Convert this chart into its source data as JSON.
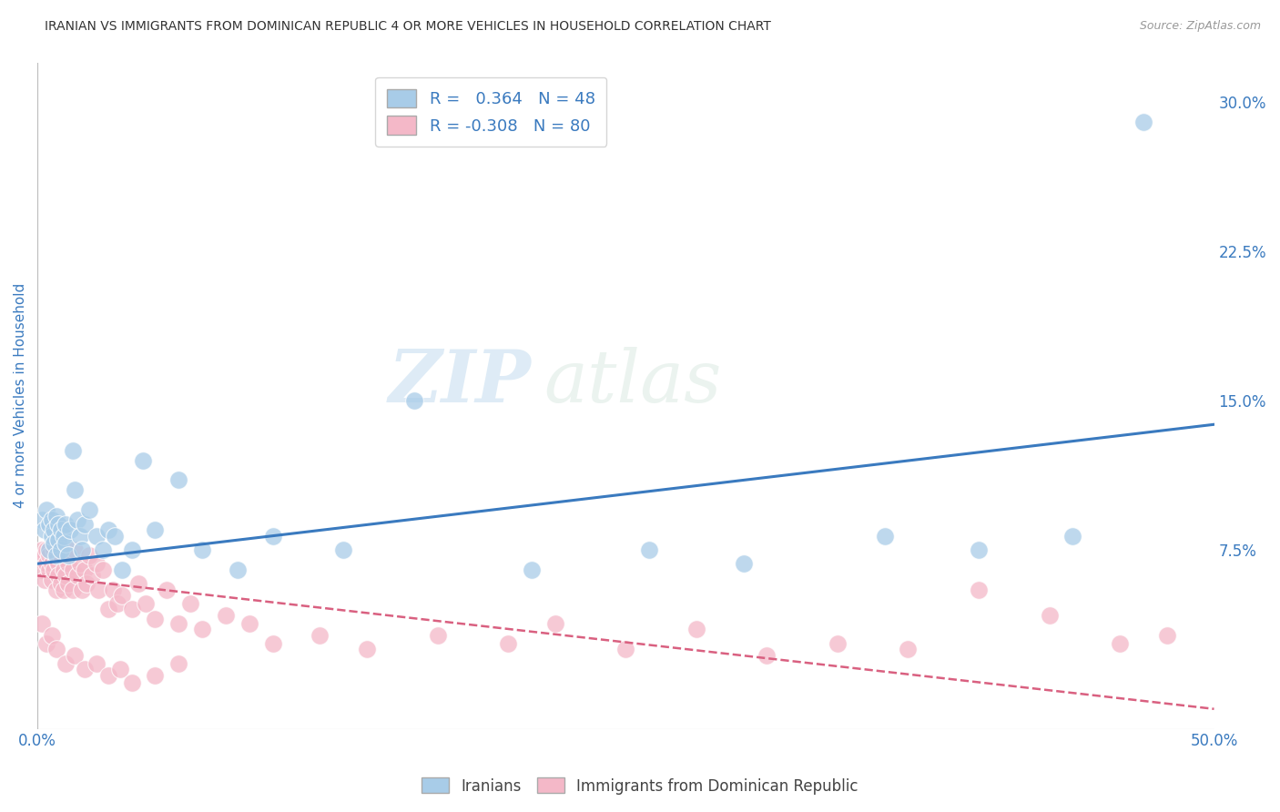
{
  "title": "IRANIAN VS IMMIGRANTS FROM DOMINICAN REPUBLIC 4 OR MORE VEHICLES IN HOUSEHOLD CORRELATION CHART",
  "source": "Source: ZipAtlas.com",
  "ylabel": "4 or more Vehicles in Household",
  "x_min": 0.0,
  "x_max": 0.5,
  "y_min": -0.015,
  "y_max": 0.32,
  "x_ticks": [
    0.0,
    0.5
  ],
  "x_tick_labels": [
    "0.0%",
    "50.0%"
  ],
  "y_ticks": [
    0.075,
    0.15,
    0.225,
    0.3
  ],
  "y_tick_labels": [
    "7.5%",
    "15.0%",
    "22.5%",
    "30.0%"
  ],
  "iranian_R": 0.364,
  "iranian_N": 48,
  "dominican_R": -0.308,
  "dominican_N": 80,
  "iranian_color": "#a8cce8",
  "dominican_color": "#f4b8c8",
  "iranian_line_color": "#3a7abf",
  "dominican_line_color": "#d96080",
  "legend_label_iranian": "Iranians",
  "legend_label_dominican": "Immigrants from Dominican Republic",
  "watermark_zip": "ZIP",
  "watermark_atlas": "atlas",
  "background_color": "#ffffff",
  "grid_color": "#cccccc",
  "title_color": "#333333",
  "axis_label_color": "#3a7abf",
  "tick_color": "#3a7abf",
  "iranian_scatter_x": [
    0.002,
    0.003,
    0.004,
    0.005,
    0.005,
    0.006,
    0.006,
    0.007,
    0.007,
    0.008,
    0.008,
    0.009,
    0.009,
    0.01,
    0.01,
    0.011,
    0.012,
    0.012,
    0.013,
    0.014,
    0.015,
    0.016,
    0.017,
    0.018,
    0.019,
    0.02,
    0.022,
    0.025,
    0.028,
    0.03,
    0.033,
    0.036,
    0.04,
    0.045,
    0.05,
    0.06,
    0.07,
    0.085,
    0.1,
    0.13,
    0.16,
    0.21,
    0.26,
    0.3,
    0.36,
    0.4,
    0.44,
    0.47
  ],
  "iranian_scatter_y": [
    0.09,
    0.085,
    0.095,
    0.088,
    0.075,
    0.082,
    0.09,
    0.085,
    0.078,
    0.092,
    0.072,
    0.088,
    0.08,
    0.085,
    0.075,
    0.082,
    0.078,
    0.088,
    0.072,
    0.085,
    0.125,
    0.105,
    0.09,
    0.082,
    0.075,
    0.088,
    0.095,
    0.082,
    0.075,
    0.085,
    0.082,
    0.065,
    0.075,
    0.12,
    0.085,
    0.11,
    0.075,
    0.065,
    0.082,
    0.075,
    0.15,
    0.065,
    0.075,
    0.068,
    0.082,
    0.075,
    0.082,
    0.29
  ],
  "dominican_scatter_x": [
    0.001,
    0.002,
    0.002,
    0.003,
    0.003,
    0.004,
    0.004,
    0.005,
    0.005,
    0.006,
    0.006,
    0.007,
    0.007,
    0.008,
    0.008,
    0.009,
    0.009,
    0.01,
    0.01,
    0.011,
    0.011,
    0.012,
    0.013,
    0.013,
    0.014,
    0.015,
    0.015,
    0.016,
    0.017,
    0.018,
    0.019,
    0.02,
    0.021,
    0.022,
    0.023,
    0.025,
    0.026,
    0.028,
    0.03,
    0.032,
    0.034,
    0.036,
    0.04,
    0.043,
    0.046,
    0.05,
    0.055,
    0.06,
    0.065,
    0.07,
    0.08,
    0.09,
    0.1,
    0.12,
    0.14,
    0.17,
    0.2,
    0.22,
    0.25,
    0.28,
    0.31,
    0.34,
    0.37,
    0.4,
    0.43,
    0.46,
    0.48,
    0.002,
    0.004,
    0.006,
    0.008,
    0.012,
    0.016,
    0.02,
    0.025,
    0.03,
    0.035,
    0.04,
    0.05,
    0.06
  ],
  "dominican_scatter_y": [
    0.07,
    0.075,
    0.065,
    0.072,
    0.06,
    0.068,
    0.075,
    0.065,
    0.072,
    0.068,
    0.06,
    0.075,
    0.065,
    0.07,
    0.055,
    0.068,
    0.062,
    0.058,
    0.072,
    0.065,
    0.055,
    0.062,
    0.068,
    0.058,
    0.072,
    0.065,
    0.055,
    0.075,
    0.062,
    0.068,
    0.055,
    0.065,
    0.058,
    0.072,
    0.062,
    0.068,
    0.055,
    0.065,
    0.045,
    0.055,
    0.048,
    0.052,
    0.045,
    0.058,
    0.048,
    0.04,
    0.055,
    0.038,
    0.048,
    0.035,
    0.042,
    0.038,
    0.028,
    0.032,
    0.025,
    0.032,
    0.028,
    0.038,
    0.025,
    0.035,
    0.022,
    0.028,
    0.025,
    0.055,
    0.042,
    0.028,
    0.032,
    0.038,
    0.028,
    0.032,
    0.025,
    0.018,
    0.022,
    0.015,
    0.018,
    0.012,
    0.015,
    0.008,
    0.012,
    0.018
  ],
  "iranian_trend_x0": 0.0,
  "iranian_trend_y0": 0.068,
  "iranian_trend_x1": 0.5,
  "iranian_trend_y1": 0.138,
  "dominican_trend_x0": 0.0,
  "dominican_trend_y0": 0.062,
  "dominican_trend_x1": 0.5,
  "dominican_trend_y1": -0.005
}
